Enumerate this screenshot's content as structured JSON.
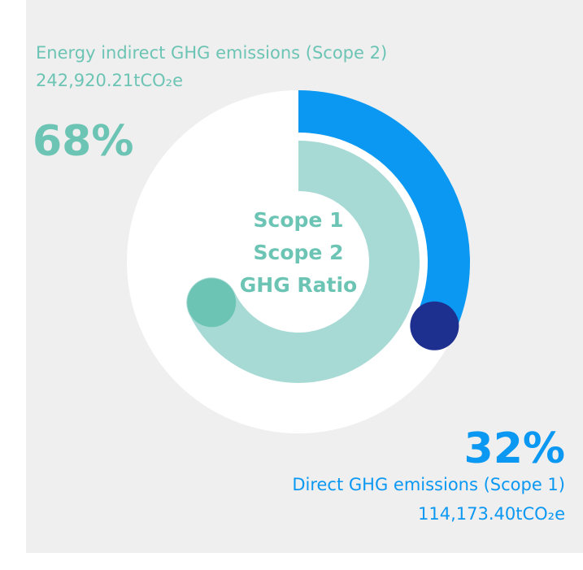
{
  "chart_data": {
    "type": "radial_bar",
    "center_label": [
      "Scope 1",
      "Scope 2",
      "GHG Ratio"
    ],
    "center_color": "#6cc4b4",
    "track_color": "#ffffff",
    "series": [
      {
        "name": "Direct GHG emissions (Scope 1)",
        "amount": "114,173.40tCO₂e",
        "values": [
          32
        ],
        "value_labels": [
          "32%"
        ],
        "color": "#0a98f2",
        "end_color": "#1d2f8f",
        "ring": "outer"
      },
      {
        "name": "Energy indirect GHG emissions (Scope 2)",
        "amount": "242,920.21tCO₂e",
        "values": [
          68
        ],
        "value_labels": [
          "68%"
        ],
        "color": "#a7dad5",
        "end_color": "#6cc4b4",
        "label_color": "#6cc4b4",
        "ring": "inner"
      }
    ]
  }
}
